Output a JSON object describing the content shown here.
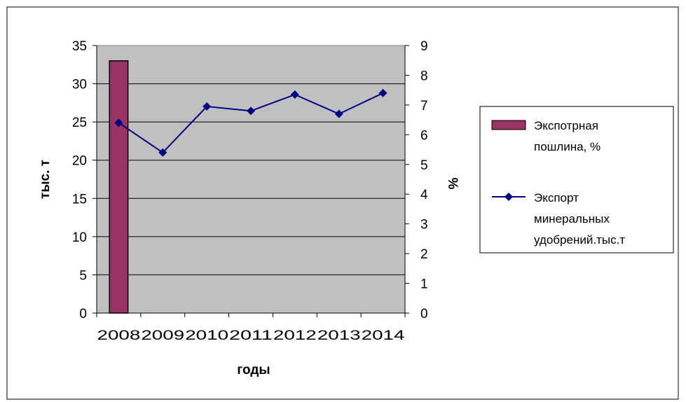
{
  "chart_data": {
    "type": "bar+line",
    "categories": [
      "2008",
      "2009",
      "2010",
      "2011",
      "2012",
      "2013",
      "2014"
    ],
    "series": [
      {
        "name": "Экспотрная пошлина, %",
        "type": "bar",
        "axis": "left",
        "color": "#993366",
        "values": [
          33,
          null,
          null,
          null,
          null,
          null,
          null
        ]
      },
      {
        "name": "Экспорт минеральных удобрений.тыс.т",
        "legend_lines": [
          "Экспорт",
          "минеральных",
          "удобрений.тыс.т"
        ],
        "type": "line",
        "axis": "right",
        "color": "#000080",
        "values": [
          6.4,
          5.4,
          6.95,
          6.8,
          7.35,
          6.7,
          7.4
        ]
      }
    ],
    "legend_bar_lines": [
      "Экспотрная",
      "пошлина, %"
    ],
    "xlabel": "годы",
    "ylabel_left": "тыс. т",
    "ylabel_right": "%",
    "ylim_left": [
      0,
      35
    ],
    "yticks_left": [
      "0",
      "5",
      "10",
      "15",
      "20",
      "25",
      "30",
      "35"
    ],
    "ylim_right": [
      0,
      9
    ],
    "yticks_right": [
      "0",
      "1",
      "2",
      "3",
      "4",
      "5",
      "6",
      "7",
      "8",
      "9"
    ],
    "plot_background": "#c0c0c0",
    "grid": true,
    "legend_position": "right"
  }
}
